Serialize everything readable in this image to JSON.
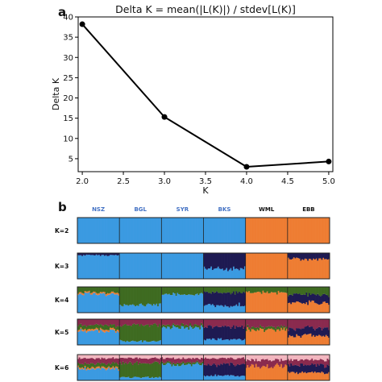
{
  "panel_a": {
    "letter": "a",
    "chart_data": {
      "type": "line",
      "title": "Delta K = mean(|L(K)|) / stdev[L(K)]",
      "xlabel": "K",
      "ylabel": "Delta K",
      "x": [
        2.0,
        3.0,
        4.0,
        5.0
      ],
      "y": [
        38.2,
        15.3,
        3.0,
        4.3
      ],
      "xlim": [
        1.95,
        5.05
      ],
      "ylim": [
        1.8,
        40
      ],
      "xticks": [
        "2.0",
        "2.5",
        "3.0",
        "3.5",
        "4.0",
        "4.5",
        "5.0"
      ],
      "yticks": [
        "5",
        "10",
        "15",
        "20",
        "25",
        "30",
        "35",
        "40"
      ],
      "grid": false,
      "line_color": "#000000"
    }
  },
  "panel_b": {
    "letter": "b",
    "chart_data": {
      "type": "bar",
      "stacked": true,
      "populations": [
        {
          "name": "NSZ",
          "color": "#4472c4"
        },
        {
          "name": "BGL",
          "color": "#4472c4"
        },
        {
          "name": "SYR",
          "color": "#4472c4"
        },
        {
          "name": "BKS",
          "color": "#4472c4"
        },
        {
          "name": "WML",
          "color": "#111111"
        },
        {
          "name": "EBB",
          "color": "#111111"
        }
      ],
      "cluster_colors": {
        "blue": "#3b9ae1",
        "orange": "#ee7d33",
        "navy": "#1e1a52",
        "green": "#3e6b21",
        "maroon": "#8a2a4e",
        "pink": "#f2b6bf"
      },
      "rows": [
        {
          "label": "K=2",
          "segments": [
            {
              "population": "NSZ",
              "composition": {
                "blue": 1.0
              }
            },
            {
              "population": "BGL",
              "composition": {
                "blue": 1.0
              }
            },
            {
              "population": "SYR",
              "composition": {
                "blue": 1.0
              }
            },
            {
              "population": "BKS",
              "composition": {
                "blue": 1.0
              }
            },
            {
              "population": "WML",
              "composition": {
                "orange": 1.0
              }
            },
            {
              "population": "EBB",
              "composition": {
                "orange": 1.0
              }
            }
          ]
        },
        {
          "label": "K=3",
          "segments": [
            {
              "population": "NSZ",
              "composition": {
                "blue": 0.92,
                "navy": 0.08
              }
            },
            {
              "population": "BGL",
              "composition": {
                "blue": 1.0
              }
            },
            {
              "population": "SYR",
              "composition": {
                "blue": 1.0
              }
            },
            {
              "population": "BKS",
              "composition": {
                "blue": 0.4,
                "navy": 0.6
              }
            },
            {
              "population": "WML",
              "composition": {
                "orange": 1.0
              }
            },
            {
              "population": "EBB",
              "composition": {
                "orange": 0.78,
                "navy": 0.22
              }
            }
          ]
        },
        {
          "label": "K=4",
          "segments": [
            {
              "population": "NSZ",
              "composition": {
                "blue": 0.72,
                "orange": 0.06,
                "green": 0.22
              }
            },
            {
              "population": "BGL",
              "composition": {
                "blue": 0.3,
                "green": 0.7
              }
            },
            {
              "population": "SYR",
              "composition": {
                "blue": 0.72,
                "green": 0.28
              }
            },
            {
              "population": "BKS",
              "composition": {
                "blue": 0.28,
                "navy": 0.5,
                "green": 0.22
              }
            },
            {
              "population": "WML",
              "composition": {
                "orange": 0.78,
                "green": 0.22
              }
            },
            {
              "population": "EBB",
              "composition": {
                "orange": 0.38,
                "navy": 0.32,
                "green": 0.3
              }
            }
          ]
        },
        {
          "label": "K=5",
          "segments": [
            {
              "population": "NSZ",
              "composition": {
                "blue": 0.55,
                "orange": 0.07,
                "green": 0.15,
                "maroon": 0.23
              }
            },
            {
              "population": "BGL",
              "composition": {
                "blue": 0.15,
                "green": 0.62,
                "maroon": 0.23
              }
            },
            {
              "population": "SYR",
              "composition": {
                "blue": 0.68,
                "green": 0.1,
                "maroon": 0.22
              }
            },
            {
              "population": "BKS",
              "composition": {
                "blue": 0.22,
                "navy": 0.48,
                "maroon": 0.3
              }
            },
            {
              "population": "WML",
              "composition": {
                "orange": 0.6,
                "green": 0.1,
                "maroon": 0.3
              }
            },
            {
              "population": "EBB",
              "composition": {
                "orange": 0.35,
                "navy": 0.3,
                "maroon": 0.35
              }
            }
          ]
        },
        {
          "label": "K=6",
          "segments": [
            {
              "population": "NSZ",
              "composition": {
                "blue": 0.45,
                "orange": 0.06,
                "green": 0.15,
                "maroon": 0.2,
                "pink": 0.14
              }
            },
            {
              "population": "BGL",
              "composition": {
                "blue": 0.12,
                "green": 0.56,
                "maroon": 0.18,
                "pink": 0.14
              }
            },
            {
              "population": "SYR",
              "composition": {
                "blue": 0.62,
                "green": 0.08,
                "maroon": 0.16,
                "pink": 0.14
              }
            },
            {
              "population": "BKS",
              "composition": {
                "blue": 0.18,
                "navy": 0.44,
                "maroon": 0.24,
                "pink": 0.14
              }
            },
            {
              "population": "WML",
              "composition": {
                "orange": 0.56,
                "maroon": 0.24,
                "pink": 0.2
              }
            },
            {
              "population": "EBB",
              "composition": {
                "orange": 0.3,
                "navy": 0.3,
                "maroon": 0.2,
                "pink": 0.2
              }
            }
          ]
        }
      ]
    }
  }
}
